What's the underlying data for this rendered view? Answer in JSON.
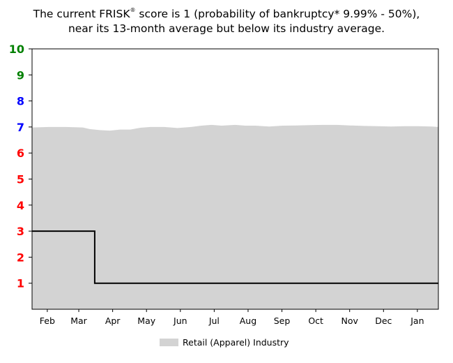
{
  "title": {
    "line1_pre": "The current FRISK",
    "line1_reg": "®",
    "line1_post": " score is 1 (probability of bankruptcy* 9.99% - 50%),",
    "line2": "near its 13-month average but below its industry average."
  },
  "legend": {
    "label": "Retail (Apparel) Industry",
    "color": "#d3d3d3"
  },
  "colors": {
    "industry_fill": "#d3d3d3",
    "score_line": "#000000",
    "tick_green": "#008000",
    "tick_blue": "#0000ff",
    "tick_red": "#ff0000"
  },
  "chart_data": {
    "type": "area",
    "title": "",
    "xlabel": "",
    "ylabel": "",
    "ylim": [
      0,
      10
    ],
    "yticks": [
      {
        "value": 1,
        "label": "1",
        "color": "#ff0000"
      },
      {
        "value": 2,
        "label": "2",
        "color": "#ff0000"
      },
      {
        "value": 3,
        "label": "3",
        "color": "#ff0000"
      },
      {
        "value": 4,
        "label": "4",
        "color": "#ff0000"
      },
      {
        "value": 5,
        "label": "5",
        "color": "#ff0000"
      },
      {
        "value": 6,
        "label": "6",
        "color": "#ff0000"
      },
      {
        "value": 7,
        "label": "7",
        "color": "#0000ff"
      },
      {
        "value": 8,
        "label": "8",
        "color": "#0000ff"
      },
      {
        "value": 9,
        "label": "9",
        "color": "#008000"
      },
      {
        "value": 10,
        "label": "10",
        "color": "#008000"
      }
    ],
    "xrange": [
      0,
      12
    ],
    "xticks": [
      {
        "value": 0.45,
        "label": "Feb"
      },
      {
        "value": 1.38,
        "label": "Mar"
      },
      {
        "value": 2.38,
        "label": "Apr"
      },
      {
        "value": 3.38,
        "label": "May"
      },
      {
        "value": 4.38,
        "label": "Jun"
      },
      {
        "value": 5.38,
        "label": "Jul"
      },
      {
        "value": 6.38,
        "label": "Aug"
      },
      {
        "value": 7.38,
        "label": "Sep"
      },
      {
        "value": 8.38,
        "label": "Oct"
      },
      {
        "value": 9.38,
        "label": "Nov"
      },
      {
        "value": 10.38,
        "label": "Dec"
      },
      {
        "value": 11.38,
        "label": "Jan"
      }
    ],
    "series": [
      {
        "name": "Retail (Apparel) Industry",
        "kind": "area",
        "x": [
          0,
          0.5,
          1,
          1.5,
          1.7,
          2,
          2.3,
          2.6,
          2.9,
          3.2,
          3.5,
          3.9,
          4.3,
          4.7,
          5.0,
          5.3,
          5.6,
          6.0,
          6.3,
          6.6,
          7.0,
          7.4,
          7.8,
          8.2,
          8.6,
          9.0,
          9.4,
          9.8,
          10.2,
          10.6,
          11.0,
          11.4,
          11.8,
          12.0
        ],
        "values": [
          6.98,
          7.0,
          7.0,
          6.98,
          6.92,
          6.88,
          6.86,
          6.9,
          6.9,
          6.97,
          7.0,
          7.0,
          6.96,
          7.0,
          7.05,
          7.08,
          7.05,
          7.08,
          7.05,
          7.05,
          7.02,
          7.05,
          7.06,
          7.07,
          7.08,
          7.08,
          7.06,
          7.04,
          7.03,
          7.02,
          7.03,
          7.03,
          7.02,
          7.0
        ]
      },
      {
        "name": "",
        "kind": "step",
        "x": [
          0,
          1.85,
          1.85,
          12.0
        ],
        "values": [
          3,
          3,
          1,
          1
        ]
      }
    ],
    "grid": false,
    "legend_position": "bottom-center"
  }
}
